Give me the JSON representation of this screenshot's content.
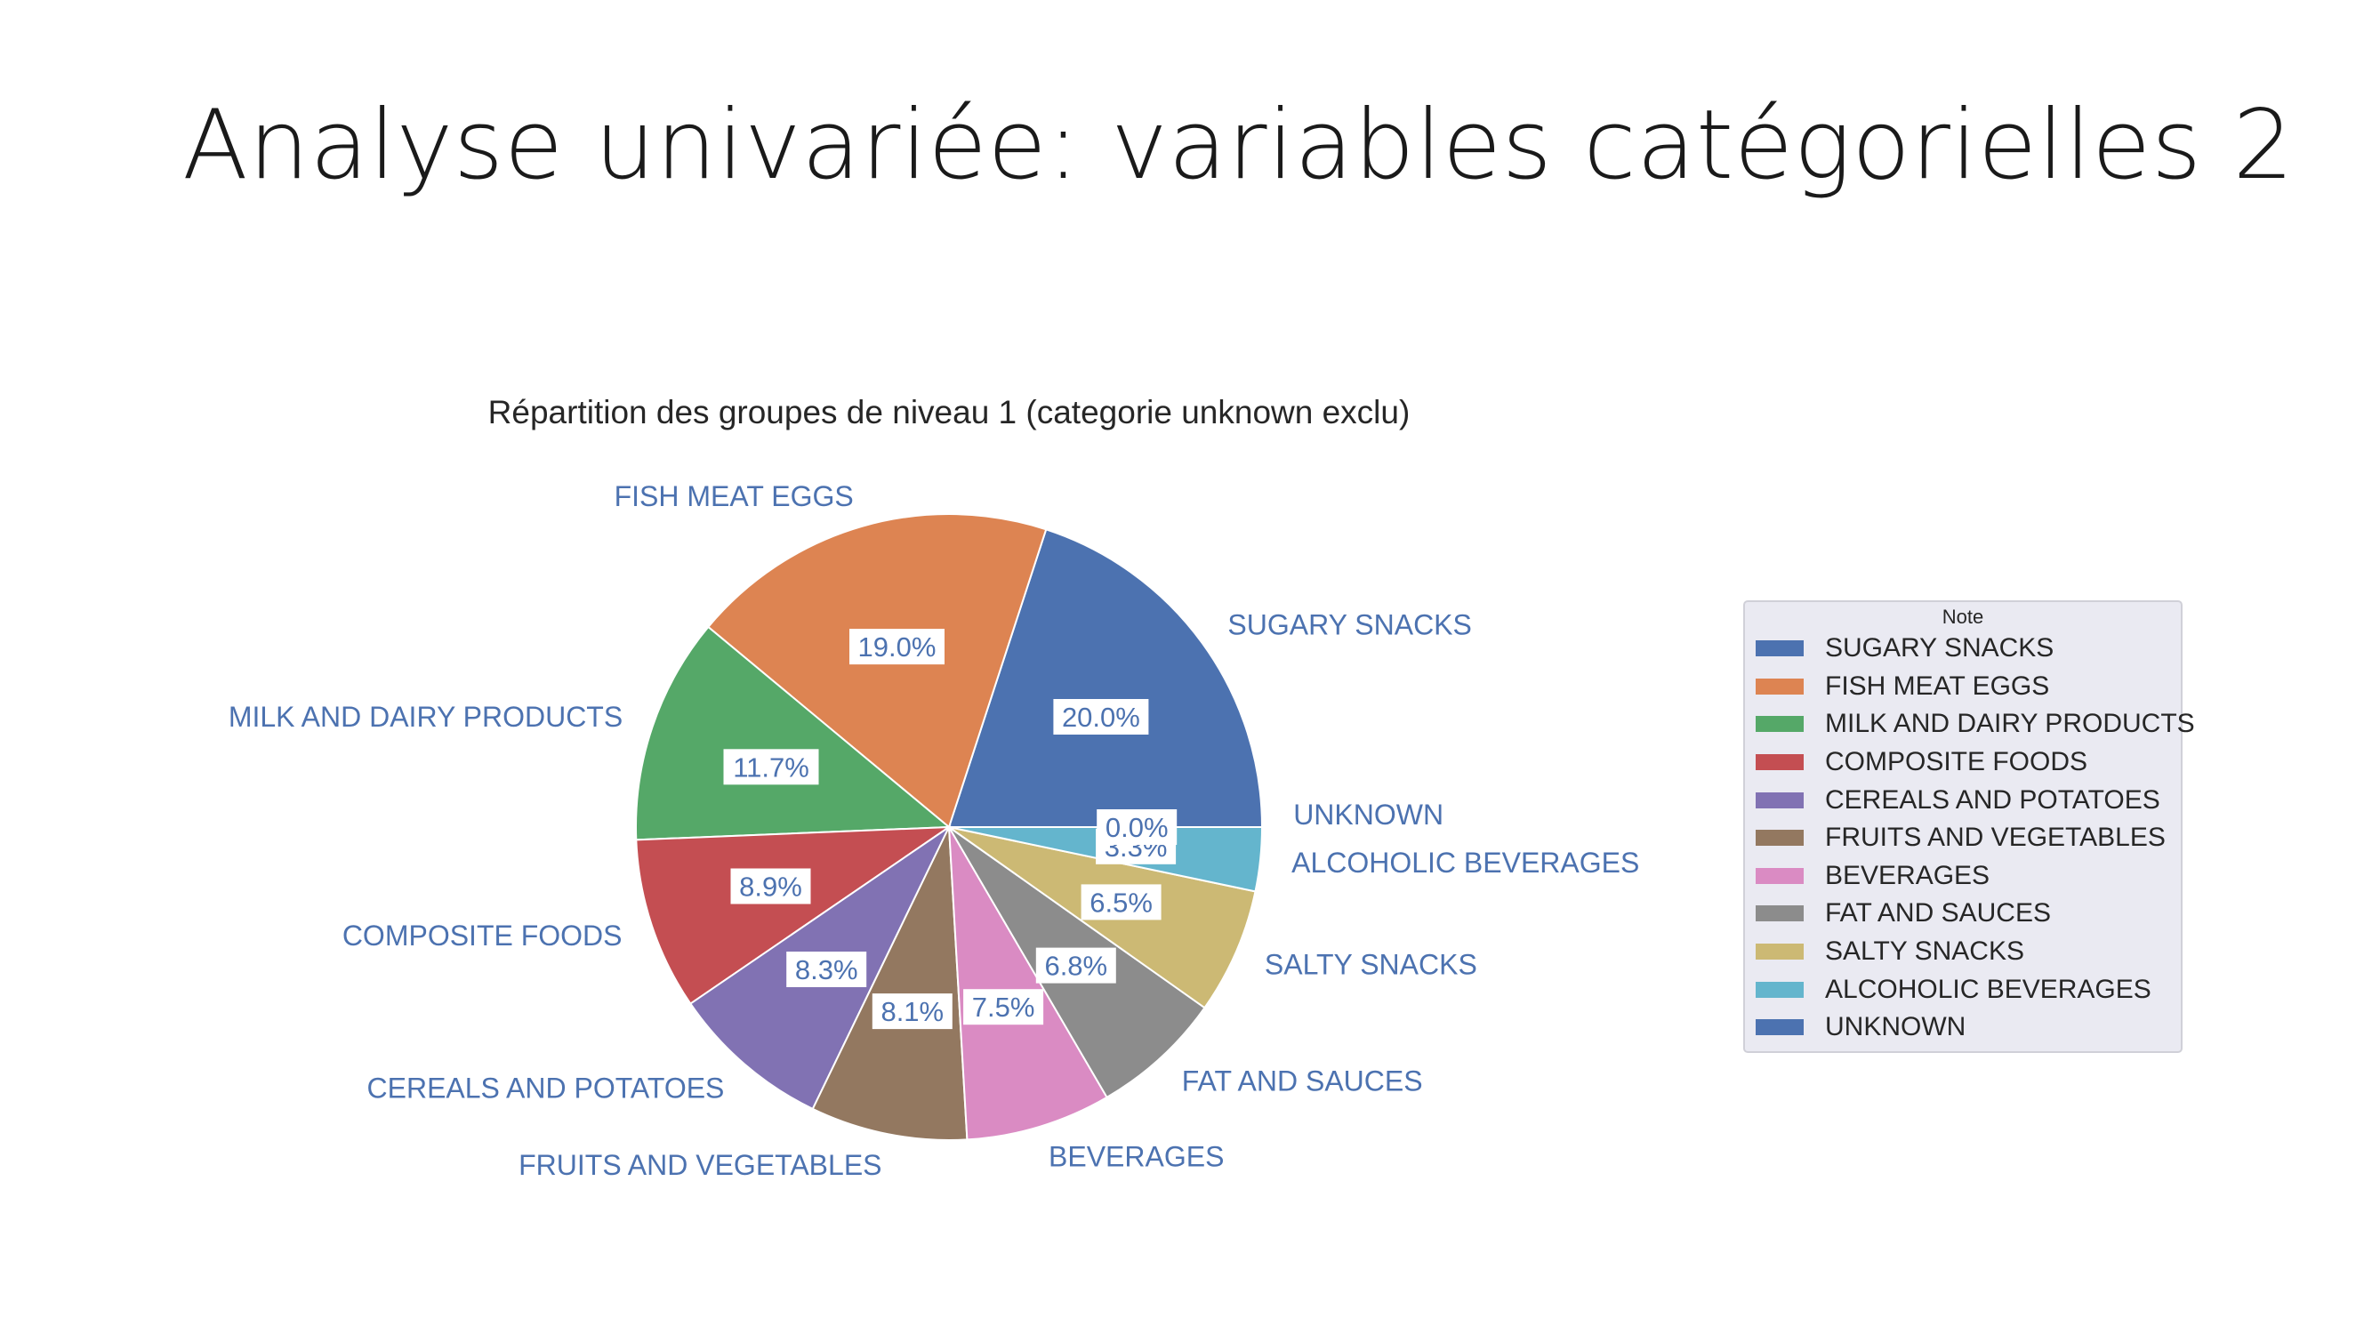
{
  "slide": {
    "title": "Analyse univariée: variables catégorielles 2"
  },
  "chart_data": {
    "type": "pie",
    "title": "Répartition des groupes de niveau 1 (categorie unknown exclu)",
    "legend_title": "Note",
    "legend_position": "right",
    "categories": [
      "SUGARY SNACKS",
      "FISH MEAT EGGS",
      "MILK AND DAIRY PRODUCTS",
      "COMPOSITE FOODS",
      "CEREALS AND POTATOES",
      "FRUITS AND VEGETABLES",
      "BEVERAGES",
      "FAT AND SAUCES",
      "SALTY SNACKS",
      "ALCOHOLIC BEVERAGES",
      "UNKNOWN"
    ],
    "values": [
      20.0,
      19.0,
      11.7,
      8.9,
      8.3,
      8.1,
      7.5,
      6.8,
      6.5,
      3.3,
      0.0
    ],
    "value_labels": [
      "20.0%",
      "19.0%",
      "11.7%",
      "8.9%",
      "8.3%",
      "8.1%",
      "7.5%",
      "6.8%",
      "6.5%",
      "3.3%",
      "0.0%"
    ],
    "colors": [
      "#4c72b0",
      "#dd8452",
      "#55a868",
      "#c44e52",
      "#8172b3",
      "#937860",
      "#da8bc3",
      "#8c8c8c",
      "#ccb974",
      "#64b5cd",
      "#4c72b0"
    ]
  }
}
